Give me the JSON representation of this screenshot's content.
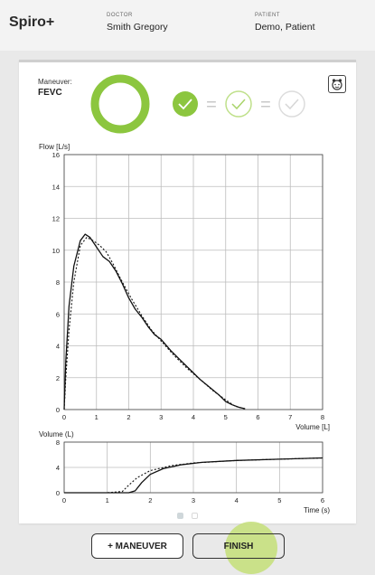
{
  "header": {
    "app_title": "Spiro+",
    "doctor_label": "DOCTOR",
    "doctor_name": "Smith Gregory",
    "patient_label": "PATIENT",
    "patient_name": "Demo, Patient"
  },
  "maneuver": {
    "label": "Maneuver:",
    "value": "FEVC",
    "progress": 1.0,
    "equals": "="
  },
  "icons": {
    "kid_mode": "child-face-icon",
    "check": "check-icon"
  },
  "colors": {
    "accent_green": "#8cc63f",
    "light_green": "#bfe08a",
    "grid": "#bdbdbd"
  },
  "chart_data": [
    {
      "type": "line",
      "title": "",
      "xlabel": "Volume [L]",
      "ylabel": "Flow [L/s]",
      "xlim": [
        0,
        8
      ],
      "ylim": [
        0,
        16
      ],
      "x_ticks": [
        "0",
        "1",
        "2",
        "3",
        "4",
        "5",
        "6",
        "7",
        "8"
      ],
      "y_ticks": [
        "0",
        "2",
        "4",
        "6",
        "8",
        "10",
        "12",
        "14",
        "16"
      ],
      "grid": true,
      "series": [
        {
          "style": "solid",
          "x": [
            0,
            0.05,
            0.15,
            0.3,
            0.5,
            0.65,
            0.8,
            1.0,
            1.2,
            1.4,
            1.6,
            1.8,
            2.0,
            2.2,
            2.4,
            2.6,
            2.8,
            3.0,
            3.3,
            3.6,
            3.9,
            4.2,
            4.5,
            4.8,
            5.0,
            5.2,
            5.4,
            5.6
          ],
          "y": [
            0,
            3,
            6.5,
            9,
            10.6,
            11,
            10.8,
            10.2,
            9.6,
            9.3,
            8.7,
            7.9,
            7.0,
            6.3,
            5.8,
            5.2,
            4.7,
            4.4,
            3.7,
            3.1,
            2.5,
            1.9,
            1.4,
            0.9,
            0.5,
            0.3,
            0.15,
            0.05
          ]
        },
        {
          "style": "dotted",
          "x": [
            0,
            0.05,
            0.15,
            0.3,
            0.5,
            0.7,
            0.9,
            1.1,
            1.3,
            1.5,
            1.8,
            2.1,
            2.4,
            2.7,
            3.0,
            3.4,
            3.8,
            4.2,
            4.6,
            5.0,
            5.3,
            5.6
          ],
          "y": [
            0,
            2,
            5,
            8,
            10.3,
            10.8,
            10.6,
            10.3,
            9.9,
            9.2,
            8.0,
            6.9,
            5.9,
            5.0,
            4.3,
            3.4,
            2.6,
            1.9,
            1.2,
            0.6,
            0.2,
            0.05
          ]
        }
      ]
    },
    {
      "type": "line",
      "title": "",
      "xlabel": "Time (s)",
      "ylabel": "Volume (L)",
      "xlim": [
        0,
        6
      ],
      "ylim": [
        0,
        8
      ],
      "x_ticks": [
        "0",
        "1",
        "2",
        "3",
        "4",
        "5",
        "6"
      ],
      "y_ticks": [
        "0",
        "4",
        "8"
      ],
      "grid": true,
      "series": [
        {
          "style": "solid",
          "x": [
            0,
            1.0,
            1.5,
            1.65,
            1.8,
            2.0,
            2.3,
            2.7,
            3.2,
            4.0,
            5.0,
            6.0
          ],
          "y": [
            0,
            0,
            0,
            0.3,
            1.6,
            2.9,
            3.8,
            4.4,
            4.8,
            5.1,
            5.3,
            5.5
          ]
        },
        {
          "style": "dotted",
          "x": [
            0,
            1.0,
            1.35,
            1.5,
            1.7,
            2.0,
            2.5,
            3.0,
            4.0,
            5.0,
            6.0
          ],
          "y": [
            0,
            0,
            0.2,
            1.2,
            2.4,
            3.5,
            4.3,
            4.7,
            5.1,
            5.3,
            5.5
          ]
        }
      ]
    }
  ],
  "pager": {
    "pages": 2,
    "current": 1
  },
  "buttons": {
    "add_maneuver": "+ MANEUVER",
    "finish": "FINISH"
  }
}
